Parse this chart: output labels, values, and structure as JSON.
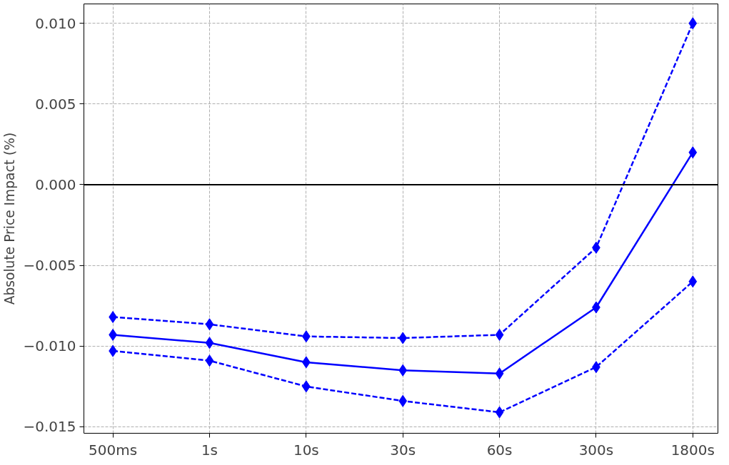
{
  "chart_data": {
    "type": "line",
    "ylabel": "Absolute Price Impact (%)",
    "categories": [
      "500ms",
      "1s",
      "10s",
      "30s",
      "60s",
      "300s",
      "1800s"
    ],
    "series": [
      {
        "color": "#0000ff",
        "line_style": "dashed",
        "values": [
          -0.0082,
          -0.00865,
          -0.0094,
          -0.0095,
          -0.0093,
          -0.0039,
          0.01
        ]
      },
      {
        "color": "#0000ff",
        "line_style": "solid",
        "values": [
          -0.0093,
          -0.0098,
          -0.011,
          -0.0115,
          -0.0117,
          -0.0076,
          0.002
        ]
      },
      {
        "color": "#0000ff",
        "line_style": "dashed",
        "values": [
          -0.0103,
          -0.0109,
          -0.0125,
          -0.0134,
          -0.0141,
          -0.0113,
          -0.006
        ]
      }
    ],
    "ylim": [
      -0.0154,
      0.0112
    ],
    "yticks": [
      {
        "value": -0.015,
        "label": "−0.015"
      },
      {
        "value": -0.01,
        "label": "−0.010"
      },
      {
        "value": -0.005,
        "label": "−0.005"
      },
      {
        "value": 0,
        "label": "0.000"
      },
      {
        "value": 0.005,
        "label": "0.005"
      },
      {
        "value": 0.01,
        "label": "0.010"
      }
    ],
    "ref_lines": [
      {
        "axis": "y",
        "value": 0,
        "color": "#000000",
        "line_style": "solid"
      }
    ],
    "grid": true,
    "marker": "diamond"
  }
}
